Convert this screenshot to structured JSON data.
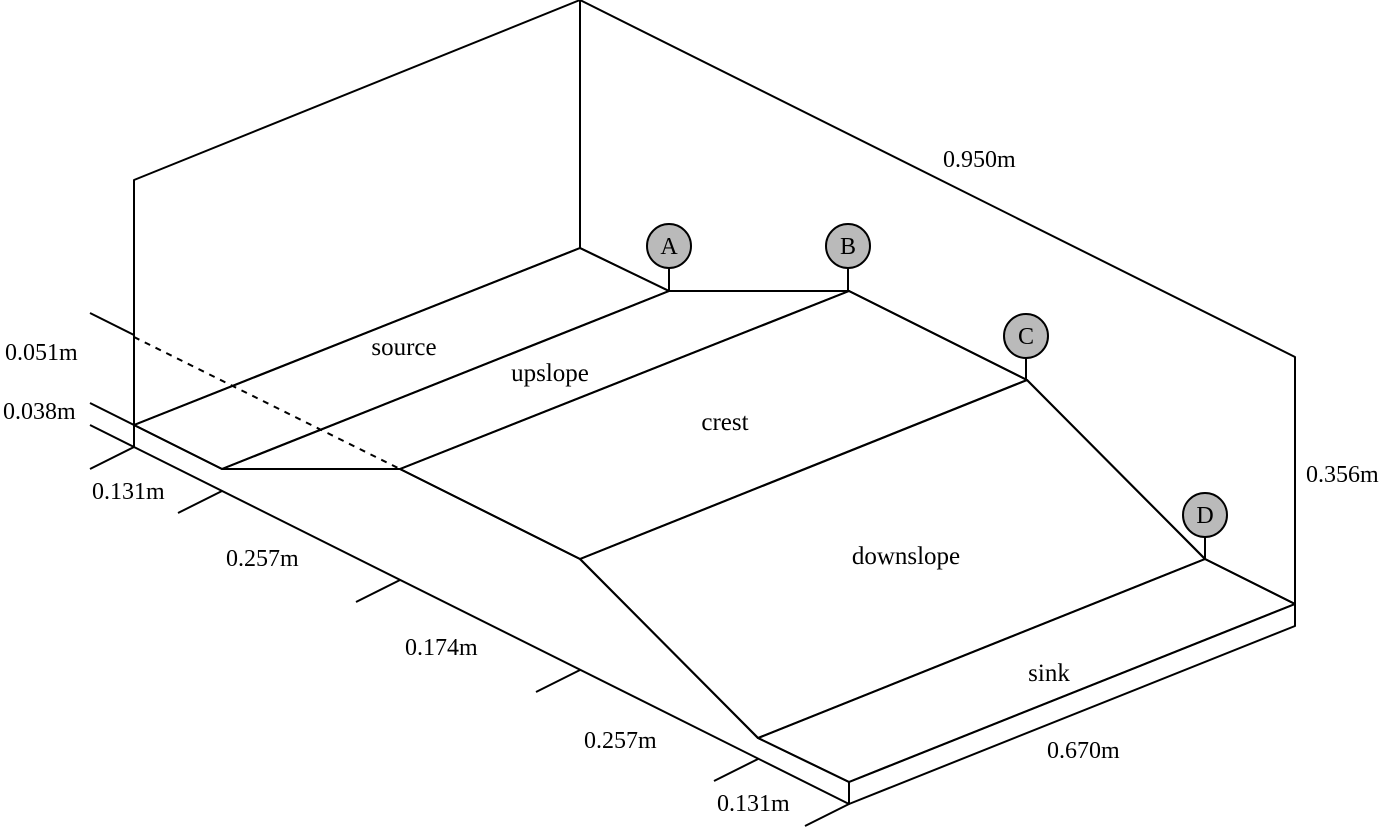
{
  "zones": {
    "source": "source",
    "upslope": "upslope",
    "crest": "crest",
    "downslope": "downslope",
    "sink": "sink"
  },
  "markers": {
    "a": "A",
    "b": "B",
    "c": "C",
    "d": "D"
  },
  "dimensions": {
    "left_height_1": "0.051m",
    "left_height_2": "0.038m",
    "length_source": "0.131m",
    "length_upslope": "0.257m",
    "length_crest": "0.174m",
    "length_downslope": "0.257m",
    "length_sink": "0.131m",
    "total_length": "0.950m",
    "width": "0.670m",
    "wall_height": "0.356m"
  },
  "colors": {
    "wall": "#bababa",
    "top_light": "#eecb87",
    "top_dark": "#cca864",
    "downslope": "#fddb98",
    "side": "#cca864"
  }
}
